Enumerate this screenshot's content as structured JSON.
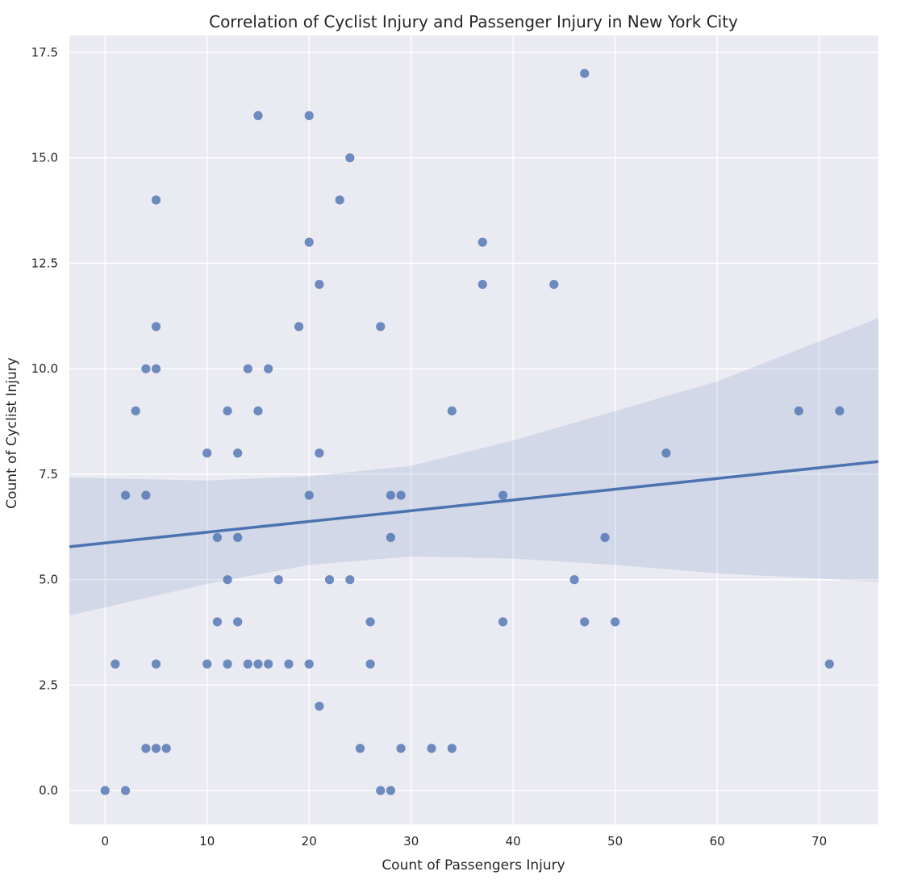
{
  "chart_data": {
    "type": "scatter",
    "title": "Correlation of Cyclist Injury and Passenger Injury in New York City",
    "xlabel": "Count of Passengers Injury",
    "ylabel": "Count of Cyclist Injury",
    "xlim": [
      -3.5,
      75.8
    ],
    "ylim": [
      -0.8,
      17.9
    ],
    "xticks": [
      0,
      10,
      20,
      30,
      40,
      50,
      60,
      70
    ],
    "yticks": [
      0.0,
      2.5,
      5.0,
      7.5,
      10.0,
      12.5,
      15.0,
      17.5
    ],
    "xtick_labels": [
      "0",
      "10",
      "20",
      "30",
      "40",
      "50",
      "60",
      "70"
    ],
    "ytick_labels": [
      "0.0",
      "2.5",
      "5.0",
      "7.5",
      "10.0",
      "12.5",
      "15.0",
      "17.5"
    ],
    "grid": true,
    "background": "#eaeaf2",
    "point_color": "#4c72b0",
    "points": [
      [
        0,
        0
      ],
      [
        2,
        0
      ],
      [
        27,
        0
      ],
      [
        28,
        0
      ],
      [
        4,
        1
      ],
      [
        5,
        1
      ],
      [
        6,
        1
      ],
      [
        25,
        1
      ],
      [
        29,
        1
      ],
      [
        32,
        1
      ],
      [
        34,
        1
      ],
      [
        21,
        2
      ],
      [
        1,
        3
      ],
      [
        5,
        3
      ],
      [
        10,
        3
      ],
      [
        12,
        3
      ],
      [
        14,
        3
      ],
      [
        15,
        3
      ],
      [
        16,
        3
      ],
      [
        18,
        3
      ],
      [
        20,
        3
      ],
      [
        26,
        3
      ],
      [
        71,
        3
      ],
      [
        11,
        4
      ],
      [
        13,
        4
      ],
      [
        26,
        4
      ],
      [
        39,
        4
      ],
      [
        47,
        4
      ],
      [
        50,
        4
      ],
      [
        12,
        5
      ],
      [
        17,
        5
      ],
      [
        22,
        5
      ],
      [
        24,
        5
      ],
      [
        46,
        5
      ],
      [
        11,
        6
      ],
      [
        13,
        6
      ],
      [
        28,
        6
      ],
      [
        49,
        6
      ],
      [
        2,
        7
      ],
      [
        4,
        7
      ],
      [
        20,
        7
      ],
      [
        28,
        7
      ],
      [
        29,
        7
      ],
      [
        39,
        7
      ],
      [
        10,
        8
      ],
      [
        13,
        8
      ],
      [
        21,
        8
      ],
      [
        55,
        8
      ],
      [
        3,
        9
      ],
      [
        12,
        9
      ],
      [
        15,
        9
      ],
      [
        34,
        9
      ],
      [
        68,
        9
      ],
      [
        72,
        9
      ],
      [
        4,
        10
      ],
      [
        5,
        10
      ],
      [
        14,
        10
      ],
      [
        16,
        10
      ],
      [
        5,
        11
      ],
      [
        19,
        11
      ],
      [
        27,
        11
      ],
      [
        21,
        12
      ],
      [
        37,
        12
      ],
      [
        44,
        12
      ],
      [
        20,
        13
      ],
      [
        37,
        13
      ],
      [
        5,
        14
      ],
      [
        23,
        14
      ],
      [
        24,
        15
      ],
      [
        15,
        16
      ],
      [
        20,
        16
      ],
      [
        47,
        17
      ]
    ],
    "regression": {
      "x": [
        -3.5,
        75.8
      ],
      "y": [
        5.78,
        7.8
      ]
    },
    "confidence_band": {
      "x": [
        -3.5,
        10,
        20,
        30,
        40,
        50,
        60,
        75.8
      ],
      "upper": [
        7.42,
        7.35,
        7.45,
        7.7,
        8.3,
        9.0,
        9.7,
        11.2
      ],
      "lower": [
        4.15,
        4.9,
        5.35,
        5.55,
        5.5,
        5.35,
        5.15,
        4.95
      ]
    }
  }
}
